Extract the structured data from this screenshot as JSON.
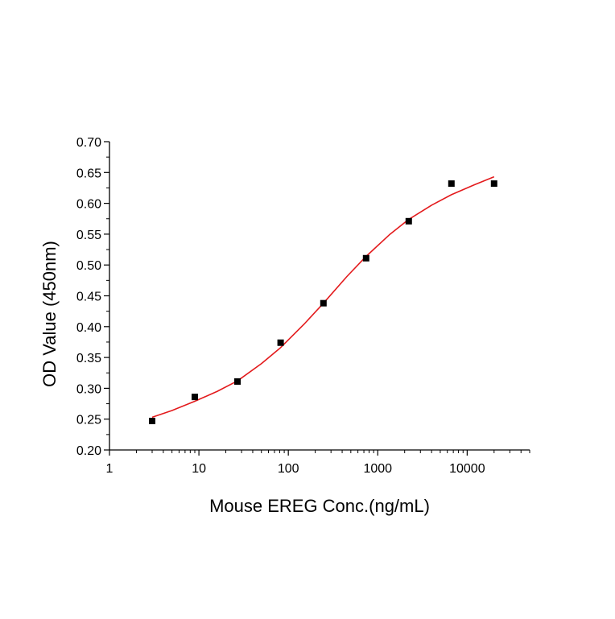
{
  "chart_data": {
    "type": "scatter",
    "title": "",
    "xlabel": "Mouse EREG Conc.(ng/mL)",
    "ylabel": "OD Value (450nm)",
    "x_scale": "log",
    "xlim": [
      1,
      50000
    ],
    "ylim": [
      0.2,
      0.7
    ],
    "x_ticks": [
      "1",
      "10",
      "100",
      "1000",
      "10000"
    ],
    "y_ticks": [
      "0.20",
      "0.25",
      "0.30",
      "0.35",
      "0.40",
      "0.45",
      "0.50",
      "0.55",
      "0.60",
      "0.65",
      "0.70"
    ],
    "grid": false,
    "series": [
      {
        "marker": "square",
        "color": "#000000",
        "x": [
          3.0,
          9.0,
          27.0,
          82.0,
          247.0,
          741.0,
          2222.0,
          6667.0,
          20000.0
        ],
        "y": [
          0.247,
          0.286,
          0.311,
          0.374,
          0.438,
          0.511,
          0.571,
          0.632,
          0.632
        ]
      },
      {
        "style": "fit-line",
        "color": "#e31a1c",
        "x": [
          3,
          5,
          9,
          16,
          27,
          50,
          82,
          150,
          247,
          450,
          741,
          1350,
          2222,
          4000,
          6667,
          12000,
          20000
        ],
        "y": [
          0.253,
          0.264,
          0.279,
          0.295,
          0.312,
          0.34,
          0.366,
          0.404,
          0.438,
          0.481,
          0.514,
          0.549,
          0.574,
          0.597,
          0.614,
          0.63,
          0.643
        ]
      }
    ]
  }
}
